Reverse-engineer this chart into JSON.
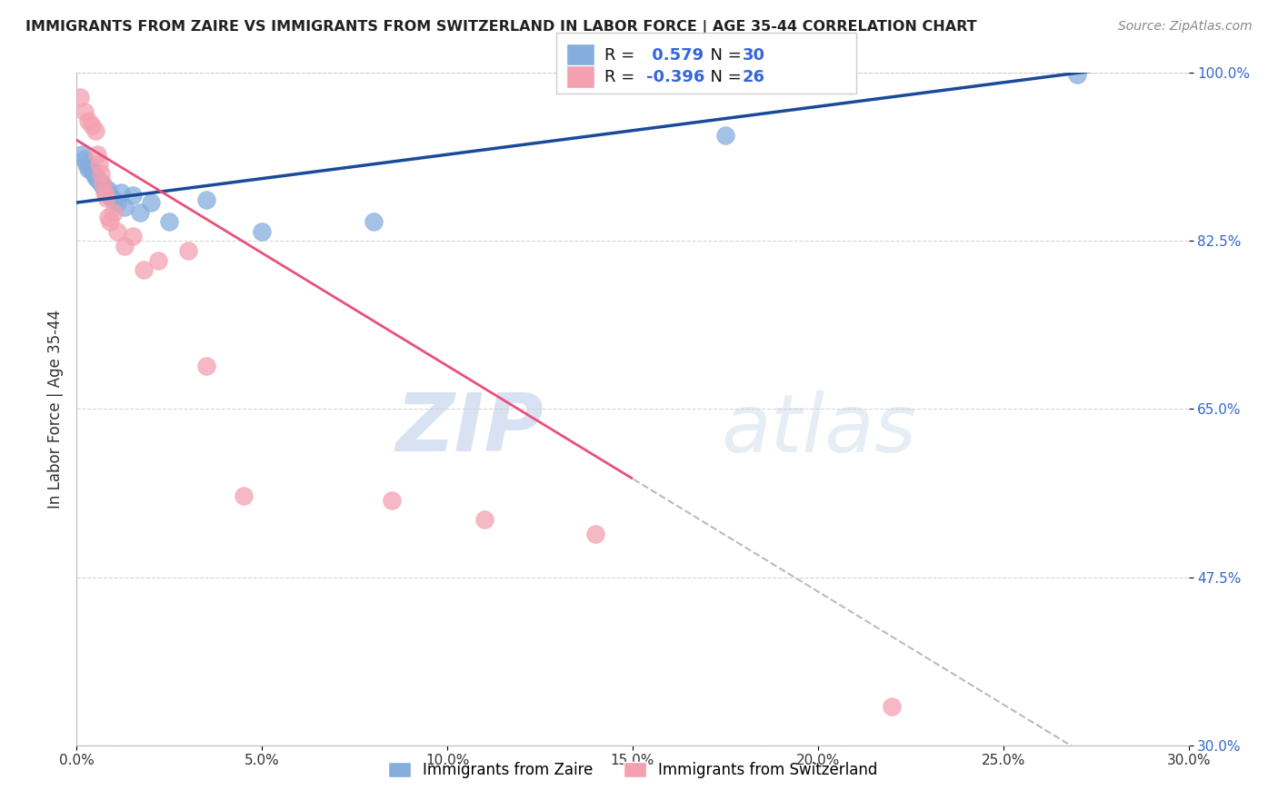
{
  "title": "IMMIGRANTS FROM ZAIRE VS IMMIGRANTS FROM SWITZERLAND IN LABOR FORCE | AGE 35-44 CORRELATION CHART",
  "source": "Source: ZipAtlas.com",
  "ylabel": "In Labor Force | Age 35-44",
  "xlim": [
    0.0,
    30.0
  ],
  "ylim": [
    30.0,
    100.0
  ],
  "xticks": [
    0.0,
    5.0,
    10.0,
    15.0,
    20.0,
    25.0,
    30.0
  ],
  "yticks": [
    30.0,
    47.5,
    65.0,
    82.5,
    100.0
  ],
  "xtick_labels": [
    "0.0%",
    "5.0%",
    "10.0%",
    "15.0%",
    "20.0%",
    "25.0%",
    "30.0%"
  ],
  "ytick_labels": [
    "30.0%",
    "47.5%",
    "65.0%",
    "82.5%",
    "100.0%"
  ],
  "blue_color": "#85AEDD",
  "pink_color": "#F4A0B0",
  "blue_line_color": "#1A4A9A",
  "pink_line_color": "#E8507A",
  "R_blue": 0.579,
  "N_blue": 30,
  "R_pink": -0.396,
  "N_pink": 26,
  "legend_blue": "Immigrants from Zaire",
  "legend_pink": "Immigrants from Switzerland",
  "watermark_zip": "ZIP",
  "watermark_atlas": "atlas",
  "blue_x": [
    0.15,
    0.2,
    0.25,
    0.3,
    0.35,
    0.4,
    0.45,
    0.5,
    0.55,
    0.6,
    0.65,
    0.7,
    0.75,
    0.8,
    0.85,
    0.9,
    0.95,
    1.0,
    1.1,
    1.2,
    1.3,
    1.5,
    1.7,
    2.0,
    2.5,
    3.5,
    5.0,
    8.0,
    17.5,
    27.0
  ],
  "blue_y": [
    91.5,
    91.0,
    90.5,
    90.0,
    90.2,
    89.8,
    89.5,
    89.2,
    89.0,
    88.8,
    88.5,
    88.2,
    88.0,
    87.5,
    87.8,
    87.2,
    87.0,
    86.8,
    86.5,
    87.5,
    86.0,
    87.3,
    85.5,
    86.5,
    84.5,
    86.8,
    83.5,
    84.5,
    93.5,
    99.8
  ],
  "pink_x": [
    0.1,
    0.2,
    0.3,
    0.4,
    0.5,
    0.55,
    0.6,
    0.65,
    0.7,
    0.75,
    0.8,
    0.85,
    0.9,
    1.0,
    1.1,
    1.3,
    1.5,
    1.8,
    2.2,
    3.0,
    3.5,
    4.5,
    8.5,
    11.0,
    14.0,
    22.0
  ],
  "pink_y": [
    97.5,
    96.0,
    95.0,
    94.5,
    94.0,
    91.5,
    90.5,
    89.5,
    88.5,
    87.5,
    87.0,
    85.0,
    84.5,
    85.5,
    83.5,
    82.0,
    83.0,
    79.5,
    80.5,
    81.5,
    69.5,
    56.0,
    55.5,
    53.5,
    52.0,
    34.0
  ],
  "pink_line_end_solid": 15.0,
  "blue_line_intercept": 86.5,
  "blue_line_slope": 0.5,
  "pink_line_intercept": 93.0,
  "pink_line_slope": -2.35
}
